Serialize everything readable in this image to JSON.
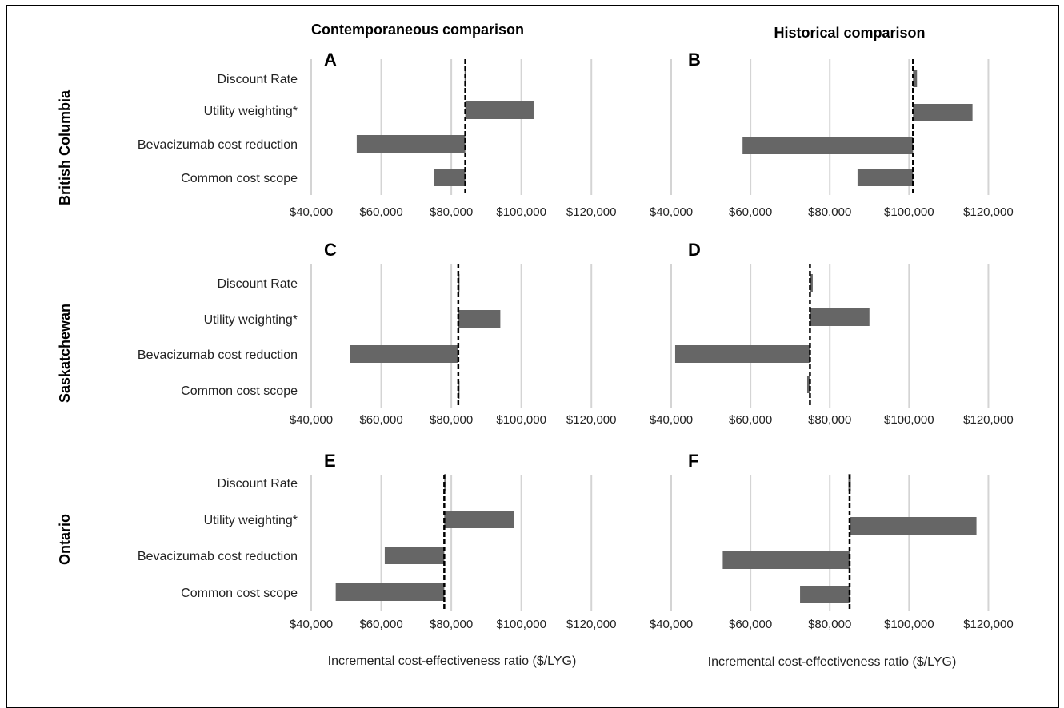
{
  "column_titles": [
    "Contemporaneous comparison",
    "Historical comparison"
  ],
  "row_titles": [
    "British Columbia",
    "Saskatchewan",
    "Ontario"
  ],
  "xlabel": "Incremental cost-effectiveness ratio ($/LYG)",
  "colors": {
    "bar": "#666666",
    "grid": "#d4d4d4",
    "baseline": "#000000"
  },
  "chart_data": [
    {
      "type": "bar",
      "panel": "A",
      "row": "British Columbia",
      "column": "Contemporaneous comparison",
      "categories": [
        "Discount Rate",
        "Utility weighting*",
        "Bevacizumab cost reduction",
        "Common cost scope"
      ],
      "baseline": 84000,
      "ranges": [
        [
          83800,
          84300
        ],
        [
          84000,
          103500
        ],
        [
          53000,
          84000
        ],
        [
          75000,
          84000
        ]
      ],
      "xticks": [
        "$40,000",
        "$60,000",
        "$80,000",
        "$100,000",
        "$120,000"
      ],
      "xlim": [
        40000,
        130000
      ]
    },
    {
      "type": "bar",
      "panel": "B",
      "row": "British Columbia",
      "column": "Historical comparison",
      "categories": [
        "Discount Rate",
        "Utility weighting*",
        "Bevacizumab cost reduction",
        "Common cost scope"
      ],
      "baseline": 101000,
      "ranges": [
        [
          101000,
          102000
        ],
        [
          101000,
          116000
        ],
        [
          58000,
          101000
        ],
        [
          87000,
          101000
        ]
      ],
      "xticks": [
        "$40,000",
        "$60,000",
        "$80,000",
        "$100,000",
        "$120,000"
      ],
      "xlim": [
        40000,
        130000
      ]
    },
    {
      "type": "bar",
      "panel": "C",
      "row": "Saskatchewan",
      "column": "Contemporaneous comparison",
      "categories": [
        "Discount Rate",
        "Utility weighting*",
        "Bevacizumab cost reduction",
        "Common cost scope"
      ],
      "baseline": 82000,
      "ranges": [
        [
          82000,
          82000
        ],
        [
          82000,
          94000
        ],
        [
          51000,
          82000
        ],
        [
          82000,
          82000
        ]
      ],
      "xticks": [
        "$40,000",
        "$60,000",
        "$80,000",
        "$100,000",
        "$120,000"
      ],
      "xlim": [
        40000,
        130000
      ]
    },
    {
      "type": "bar",
      "panel": "D",
      "row": "Saskatchewan",
      "column": "Historical comparison",
      "categories": [
        "Discount Rate",
        "Utility weighting*",
        "Bevacizumab cost reduction",
        "Common cost scope"
      ],
      "baseline": 75000,
      "ranges": [
        [
          75000,
          75700
        ],
        [
          75000,
          90000
        ],
        [
          41000,
          75000
        ],
        [
          74300,
          75000
        ]
      ],
      "xticks": [
        "$40,000",
        "$60,000",
        "$80,000",
        "$100,000",
        "$120,000"
      ],
      "xlim": [
        40000,
        130000
      ]
    },
    {
      "type": "bar",
      "panel": "E",
      "row": "Ontario",
      "column": "Contemporaneous comparison",
      "categories": [
        "Discount Rate",
        "Utility weighting*",
        "Bevacizumab cost reduction",
        "Common cost scope"
      ],
      "baseline": 78000,
      "ranges": [
        [
          78000,
          78000
        ],
        [
          78000,
          98000
        ],
        [
          61000,
          78000
        ],
        [
          47000,
          78000
        ]
      ],
      "xticks": [
        "$40,000",
        "$60,000",
        "$80,000",
        "$100,000",
        "$120,000"
      ],
      "xlim": [
        40000,
        130000
      ]
    },
    {
      "type": "bar",
      "panel": "F",
      "row": "Ontario",
      "column": "Historical comparison",
      "categories": [
        "Discount Rate",
        "Utility weighting*",
        "Bevacizumab cost reduction",
        "Common cost scope"
      ],
      "baseline": 85000,
      "ranges": [
        [
          84700,
          85300
        ],
        [
          85000,
          117000
        ],
        [
          53000,
          85000
        ],
        [
          72500,
          85000
        ]
      ],
      "xticks": [
        "$40,000",
        "$60,000",
        "$80,000",
        "$100,000",
        "$120,000"
      ],
      "xlim": [
        40000,
        130000
      ]
    }
  ]
}
